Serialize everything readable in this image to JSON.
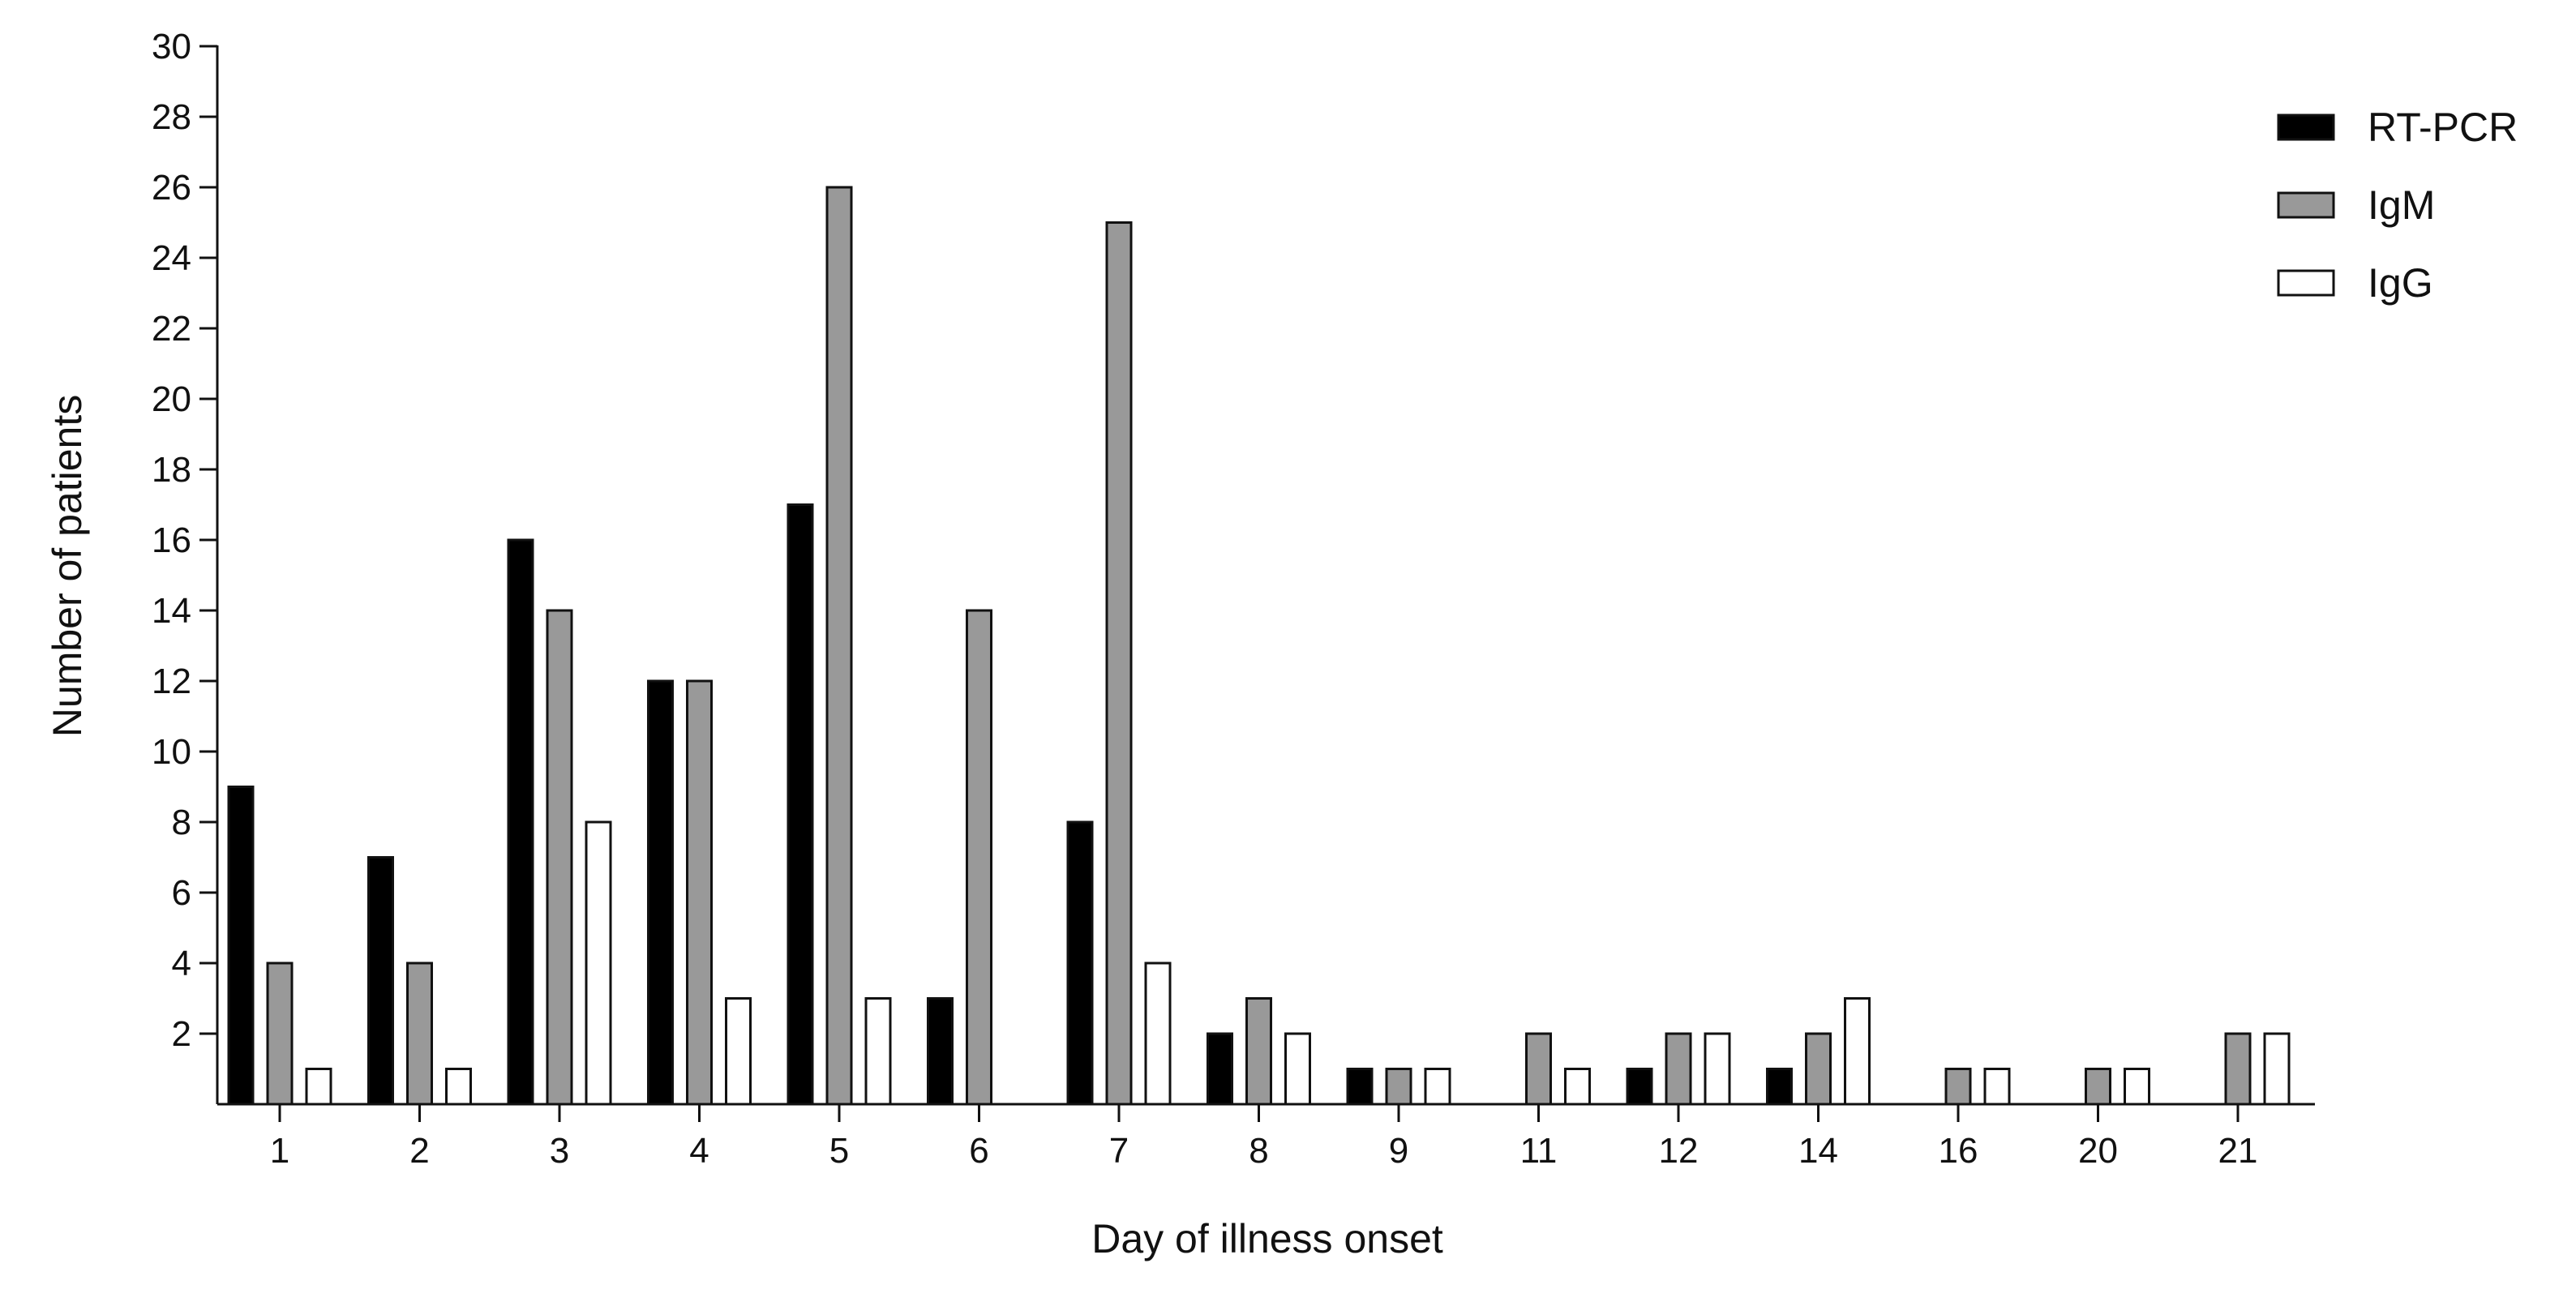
{
  "chart_data": {
    "type": "bar",
    "title": "",
    "xlabel": "Day of illness onset",
    "ylabel": "Number of patients",
    "ylim": [
      0,
      30
    ],
    "yticks": [
      2,
      4,
      6,
      8,
      10,
      12,
      14,
      16,
      18,
      20,
      22,
      24,
      26,
      28,
      30
    ],
    "categories": [
      "1",
      "2",
      "3",
      "4",
      "5",
      "6",
      "7",
      "8",
      "9",
      "11",
      "12",
      "14",
      "16",
      "20",
      "21"
    ],
    "series": [
      {
        "name": "RT-PCR",
        "color": "#000000",
        "values": [
          9,
          7,
          16,
          12,
          17,
          3,
          8,
          2,
          1,
          0,
          1,
          1,
          0,
          0,
          0
        ]
      },
      {
        "name": "IgM",
        "color": "#999999",
        "values": [
          4,
          4,
          14,
          12,
          26,
          14,
          25,
          3,
          1,
          2,
          2,
          2,
          1,
          1,
          2
        ]
      },
      {
        "name": "IgG",
        "color": "#ffffff",
        "values": [
          1,
          1,
          8,
          3,
          3,
          0,
          4,
          2,
          1,
          1,
          2,
          3,
          1,
          1,
          2
        ]
      }
    ],
    "legend_position": "top-right",
    "grid": false
  }
}
